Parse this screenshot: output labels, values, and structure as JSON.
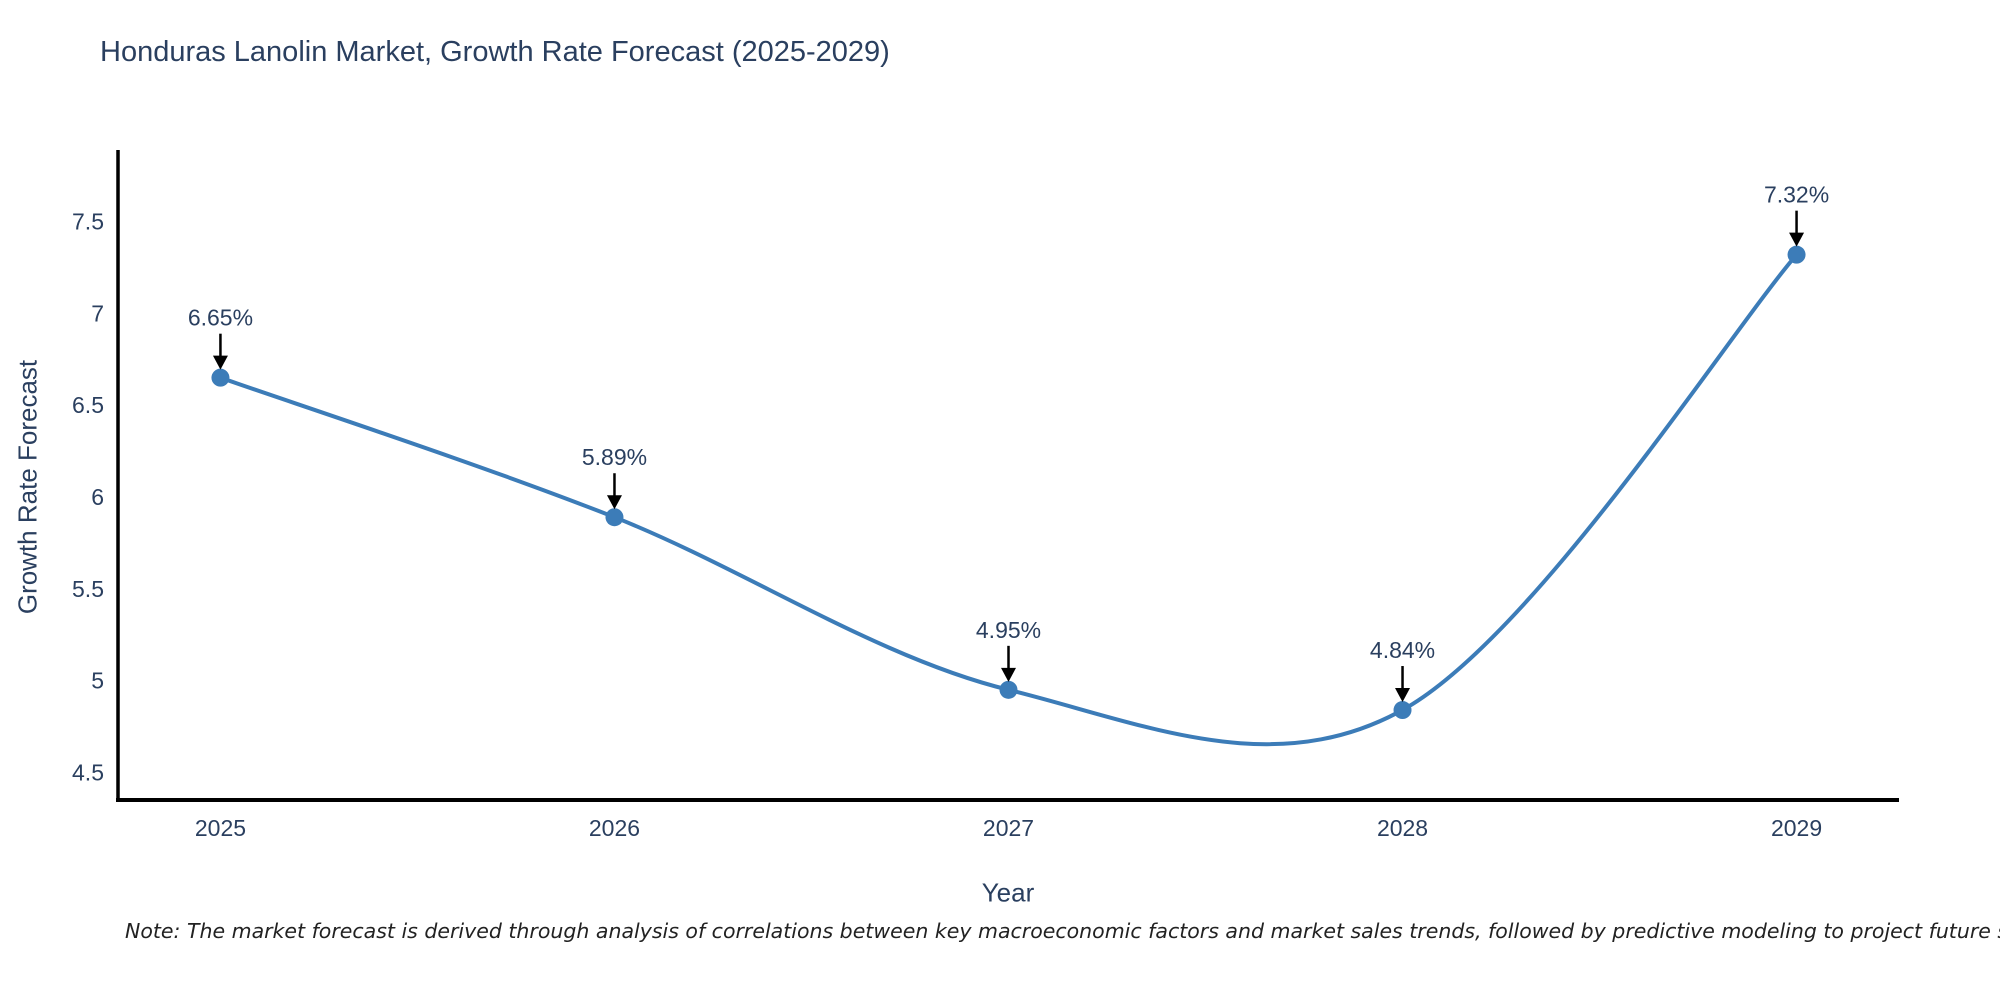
{
  "chart_data": {
    "type": "line",
    "line_shape": "spline",
    "title": "Honduras Lanolin Market, Growth Rate Forecast (2025-2029)",
    "xlabel": "Year",
    "ylabel": "Growth Rate Forecast",
    "x": [
      2025,
      2026,
      2027,
      2028,
      2029
    ],
    "y": [
      6.65,
      5.89,
      4.95,
      4.84,
      7.32
    ],
    "point_labels": [
      "6.65%",
      "5.89%",
      "4.95%",
      "4.84%",
      "7.32%"
    ],
    "xticks": [
      2025,
      2026,
      2027,
      2028,
      2029
    ],
    "yticks": [
      4.5,
      5,
      5.5,
      6,
      6.5,
      7,
      7.5
    ],
    "xlim": [
      2024.74,
      2029.26
    ],
    "ylim": [
      4.35,
      7.89
    ],
    "grid": false,
    "legend": "none",
    "line_color": "#3c7cb8",
    "marker_color": "#3c7cb8",
    "axis_color": "#000000",
    "text_color": "#2a3f5f",
    "annotation_arrow_color": "#000000"
  },
  "note": "Note: The market forecast is derived through analysis of correlations between key macroeconomic factors and market sales trends, followed by predictive modeling to project future sales"
}
